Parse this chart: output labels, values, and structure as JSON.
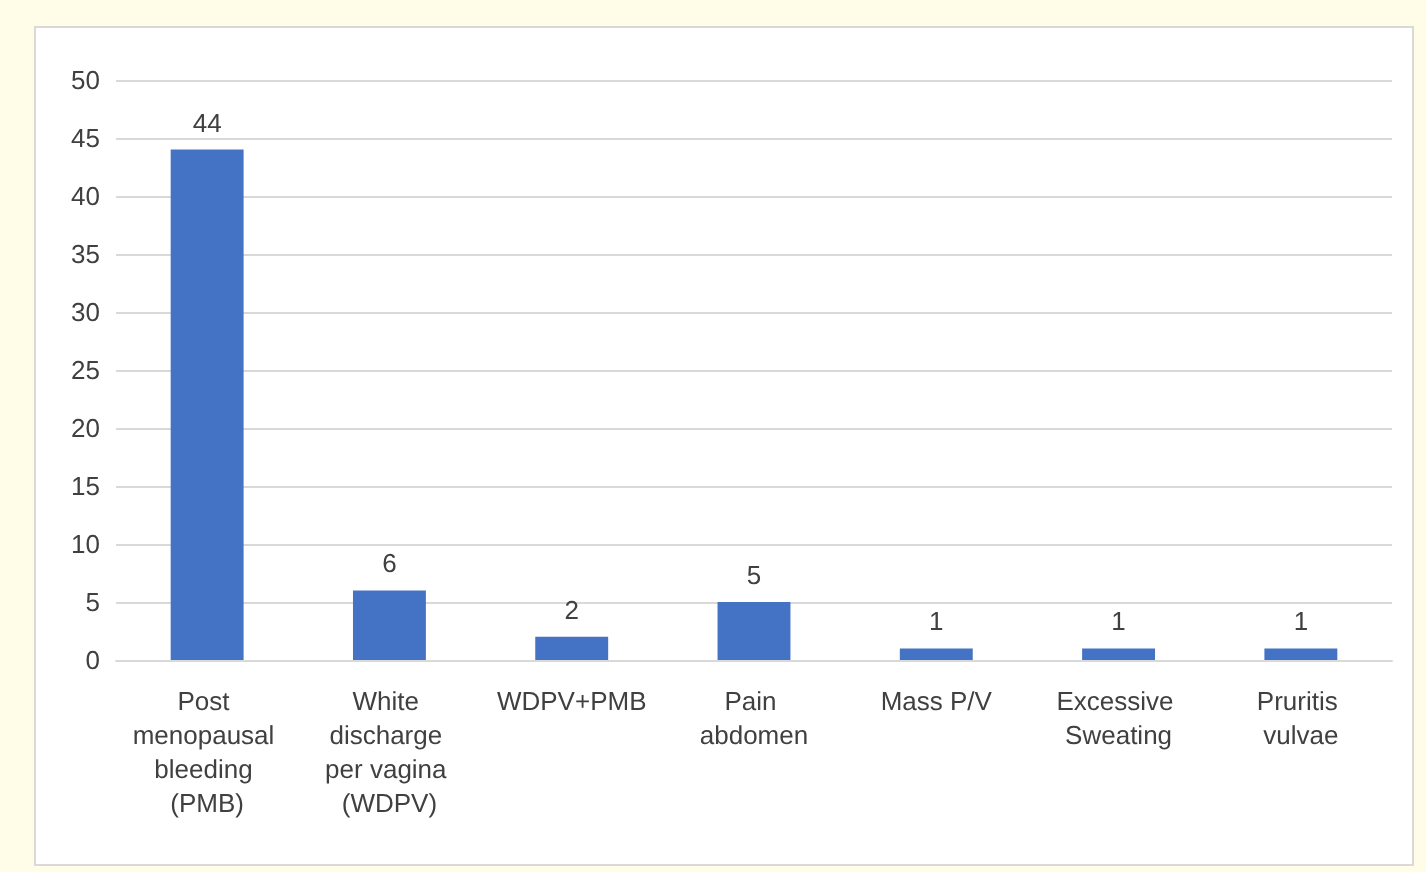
{
  "chart_data": {
    "type": "bar",
    "categories": [
      "Post menopausal bleeding (PMB)",
      "White discharge per vagina (WDPV)",
      "WDPV+PMB",
      "Pain abdomen",
      "Mass P/V",
      "Excessive Sweating",
      "Pruritis vulvae"
    ],
    "values": [
      44,
      6,
      2,
      5,
      1,
      1,
      1
    ],
    "color": "#4472c4",
    "ylim": [
      0,
      50
    ],
    "yticks": [
      0,
      5,
      10,
      15,
      20,
      25,
      30,
      35,
      40,
      45,
      50
    ],
    "grid": "y",
    "data_labels": true
  }
}
